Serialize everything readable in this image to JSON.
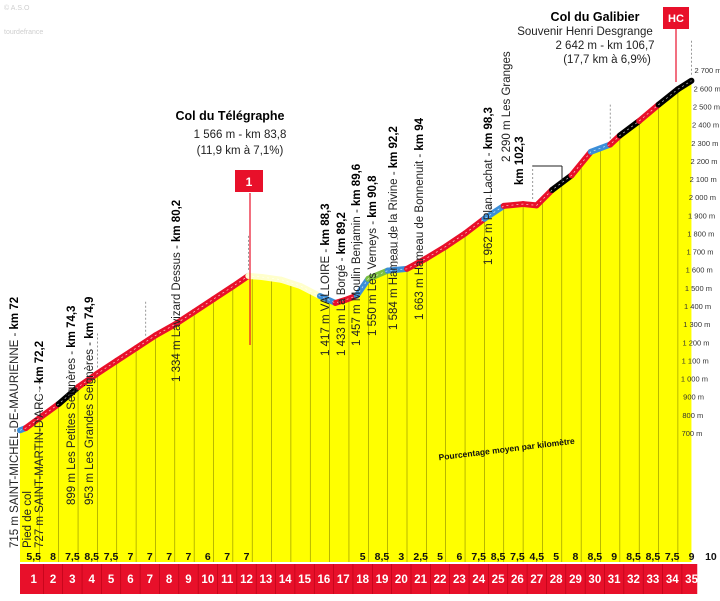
{
  "chart_data": {
    "type": "area",
    "xlim": [
      0,
      35
    ],
    "ylim": [
      700,
      2700
    ],
    "y_unit": "m",
    "y_ticks": [
      "700 m",
      "800 m",
      "900 m",
      "1 000 m",
      "1 100 m",
      "1 200 m",
      "1 300 m",
      "1 400 m",
      "1 500 m",
      "1 600 m",
      "1 700 m",
      "1 800 m",
      "1 900 m",
      "2 000 m",
      "2 100 m",
      "2 200 m",
      "2 300 m",
      "2 400 m",
      "2 500 m",
      "2 600 m",
      "2 700 m"
    ],
    "km_labels": [
      "1",
      "2",
      "3",
      "4",
      "5",
      "6",
      "7",
      "8",
      "9",
      "10",
      "11",
      "12",
      "13",
      "14",
      "15",
      "16",
      "17",
      "18",
      "19",
      "20",
      "21",
      "22",
      "23",
      "24",
      "25",
      "26",
      "27",
      "28",
      "29",
      "30",
      "31",
      "32",
      "33",
      "34",
      "35"
    ],
    "gradients": [
      "5,5",
      "8",
      "7,5",
      "8,5",
      "7,5",
      "7",
      "7",
      "7",
      "7",
      "6",
      "7",
      "7",
      "",
      "",
      "",
      "",
      "",
      "5",
      "8,5",
      "3",
      "2,5",
      "5",
      "6",
      "7,5",
      "8,5",
      "7,5",
      "4,5",
      "5",
      "8",
      "8,5",
      "9",
      "8,5",
      "8,5",
      "7,5",
      "9",
      "10"
    ],
    "profile": {
      "km": [
        0,
        0.3,
        1,
        2,
        3,
        4,
        5,
        6,
        7,
        8,
        9,
        10,
        11,
        11.8,
        12.5,
        13.5,
        14.5,
        15.5,
        16.3,
        16.8,
        17.4,
        18,
        19,
        20,
        21,
        22,
        23,
        24,
        25,
        26,
        26.7,
        27.5,
        28.5,
        29.5,
        30.5,
        31,
        32,
        33,
        34,
        34.7
      ],
      "elevation": [
        715,
        727,
        782,
        860,
        953,
        1028,
        1098,
        1168,
        1238,
        1298,
        1368,
        1438,
        1508,
        1566,
        1560,
        1545,
        1510,
        1455,
        1417,
        1433,
        1457,
        1550,
        1595,
        1605,
        1663,
        1728,
        1800,
        1881,
        1952,
        1962,
        1955,
        2040,
        2120,
        2250,
        2290,
        2340,
        2420,
        2510,
        2595,
        2642
      ]
    },
    "marker_km": [
      1,
      4,
      6.5,
      11.8,
      19.5,
      24.3,
      26.5,
      30.5,
      34.7
    ],
    "point_labels": [
      {
        "text": "715 m SAINT-MICHEL-DE-MAURIENNE - ",
        "km": "km 72"
      },
      {
        "text": "Pied de col",
        "km": ""
      },
      {
        "text": "727 m SAINT-MARTIN-D'ARC - ",
        "km": "km 72,2"
      },
      {
        "text": "899 m Les Petites Seignères - ",
        "km": "km 74,3"
      },
      {
        "text": "953 m Les Grandes Seignères - ",
        "km": "km 74,9"
      },
      {
        "text": "1 334 m Lavizard Dessus - ",
        "km": "km 80,2"
      },
      {
        "text": "1 417 m VALLOIRE - ",
        "km": "km 88,3"
      },
      {
        "text": "1 433 m La Borgé - ",
        "km": "km 89,2"
      },
      {
        "text": "1 457 m Moulin Benjamin - ",
        "km": "km 89,6"
      },
      {
        "text": "1 550 m Les Verneys - ",
        "km": "km 90,8"
      },
      {
        "text": "1 584 m Hameau de la Rivine - ",
        "km": "km 92,2"
      },
      {
        "text": "1 663 m Hameau de Bonnenuit - ",
        "km": "km 94"
      },
      {
        "text": "1 962 m Plan Lachat - ",
        "km": "km 98,3"
      }
    ],
    "les_granges": {
      "line1": "2 290 m Les Granges",
      "line2": "km 102,3"
    },
    "telegraphe": {
      "name": "Col du Télégraphe",
      "line2": "1 566 m - km 83,8",
      "line3": "(11,9 km à 7,1%)",
      "category": "1"
    },
    "galibier": {
      "name": "Col du Galibier",
      "line2": "Souvenir Henri Desgrange",
      "line3": "2 642 m - km 106,7",
      "line4": "(17,7 km à 6,9%)",
      "category": "HC"
    },
    "avg_note": "Pourcentage moyen par kilomètre",
    "colors": {
      "fill": "#ffff00",
      "red": "#e8102a",
      "black": "#000000",
      "blue": "#3b8ed8",
      "green": "#7cc040",
      "km_band": "#e8102a"
    },
    "watermark": [
      "© A.S.O",
      "tourdefrance"
    ]
  }
}
